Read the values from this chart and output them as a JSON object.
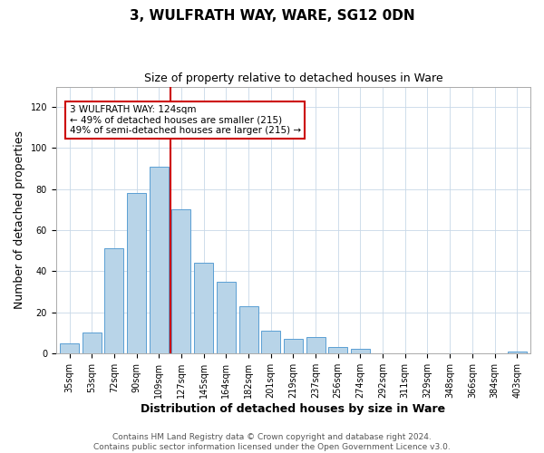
{
  "title": "3, WULFRATH WAY, WARE, SG12 0DN",
  "subtitle": "Size of property relative to detached houses in Ware",
  "xlabel": "Distribution of detached houses by size in Ware",
  "ylabel": "Number of detached properties",
  "bar_labels": [
    "35sqm",
    "53sqm",
    "72sqm",
    "90sqm",
    "109sqm",
    "127sqm",
    "145sqm",
    "164sqm",
    "182sqm",
    "201sqm",
    "219sqm",
    "237sqm",
    "256sqm",
    "274sqm",
    "292sqm",
    "311sqm",
    "329sqm",
    "348sqm",
    "366sqm",
    "384sqm",
    "403sqm"
  ],
  "bar_values": [
    5,
    10,
    51,
    78,
    91,
    70,
    44,
    35,
    23,
    11,
    7,
    8,
    3,
    2,
    0,
    0,
    0,
    0,
    0,
    0,
    1
  ],
  "bar_color": "#b8d4e8",
  "bar_edge_color": "#5a9fd4",
  "vline_index": 5,
  "vline_color": "#cc0000",
  "ylim": [
    0,
    130
  ],
  "yticks": [
    0,
    20,
    40,
    60,
    80,
    100,
    120
  ],
  "annotation_title": "3 WULFRATH WAY: 124sqm",
  "annotation_line1": "← 49% of detached houses are smaller (215)",
  "annotation_line2": "49% of semi-detached houses are larger (215) →",
  "footer_line1": "Contains HM Land Registry data © Crown copyright and database right 2024.",
  "footer_line2": "Contains public sector information licensed under the Open Government Licence v3.0.",
  "title_fontsize": 11,
  "subtitle_fontsize": 9,
  "axis_label_fontsize": 9,
  "tick_fontsize": 7,
  "annotation_fontsize": 7.5,
  "footer_fontsize": 6.5
}
